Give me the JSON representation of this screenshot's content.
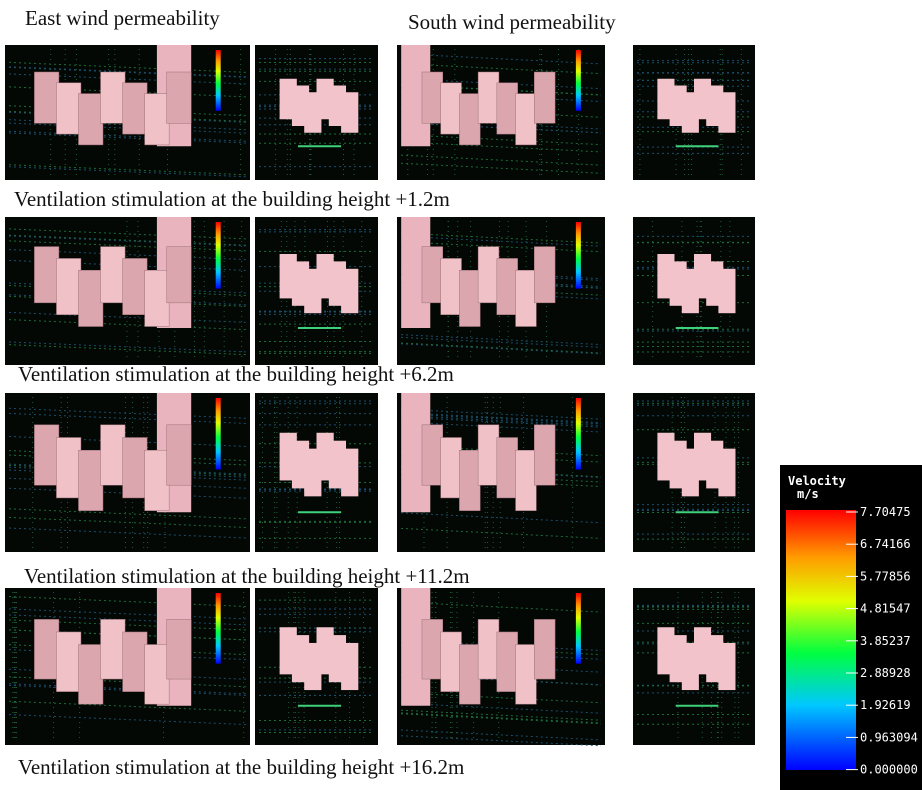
{
  "headers": [
    "East wind permeability",
    "South wind permeability"
  ],
  "captions": [
    "Ventilation stimulation at the building height +1.2m",
    "Ventilation stimulation at the building height +6.2m",
    "Ventilation stimulation at the building height +11.2m",
    "Ventilation stimulation at the building height +16.2m"
  ],
  "legend": {
    "title": "Velocity",
    "unit": "m/s",
    "labels": [
      "7.70475",
      "6.74166",
      "5.77856",
      "4.81547",
      "3.85237",
      "2.88928",
      "1.92619",
      "0.963094",
      "0.000000"
    ]
  }
}
